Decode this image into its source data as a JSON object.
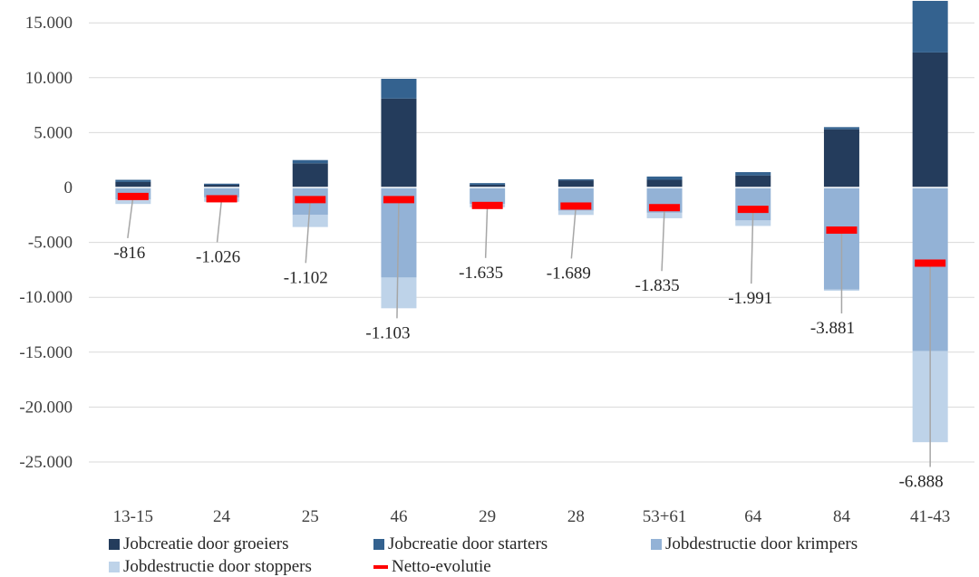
{
  "chart_data": {
    "type": "bar",
    "stacked": true,
    "categories": [
      "13-15",
      "24",
      "25",
      "46",
      "29",
      "28",
      "53+61",
      "64",
      "84",
      "41-43"
    ],
    "ylim": [
      -25000,
      17000
    ],
    "yticks": [
      15000,
      10000,
      5000,
      0,
      -5000,
      -10000,
      -15000,
      -20000,
      -25000
    ],
    "ytick_labels": [
      "15.000",
      "10.000",
      "5.000",
      "0",
      "-5.000",
      "-10.000",
      "-15.000",
      "-20.000",
      "-25.000"
    ],
    "grid": true,
    "legend_position": "bottom",
    "series": [
      {
        "name": "Jobcreatie door groeiers",
        "color": "#243c5c",
        "values": [
          500,
          250,
          2200,
          8100,
          250,
          650,
          700,
          1100,
          5300,
          12300
        ]
      },
      {
        "name": "Jobcreatie door starters",
        "color": "#34628f",
        "values": [
          200,
          100,
          300,
          1800,
          150,
          100,
          300,
          300,
          200,
          4700
        ]
      },
      {
        "name": "Jobdestructie door krimpers",
        "color": "#93b2d6",
        "values": [
          -1100,
          -900,
          -2500,
          -8200,
          -1500,
          -2100,
          -2300,
          -3000,
          -9300,
          -14900
        ]
      },
      {
        "name": "Jobdestructie door stoppers",
        "color": "#bed3e9",
        "values": [
          -400,
          -400,
          -1100,
          -2800,
          -300,
          -400,
          -500,
          -500,
          -100,
          -8300
        ]
      }
    ],
    "net": {
      "name": "Netto-evolutie",
      "color": "#ff0000",
      "values": [
        -816,
        -1026,
        -1102,
        -1103,
        -1635,
        -1689,
        -1835,
        -1991,
        -3881,
        -6888
      ],
      "labels": [
        "-816",
        "-1.026",
        "-1.102",
        "-1.103",
        "-1.635",
        "-1.689",
        "-1.835",
        "-1.991",
        "-3.881",
        "-6.888"
      ]
    }
  }
}
